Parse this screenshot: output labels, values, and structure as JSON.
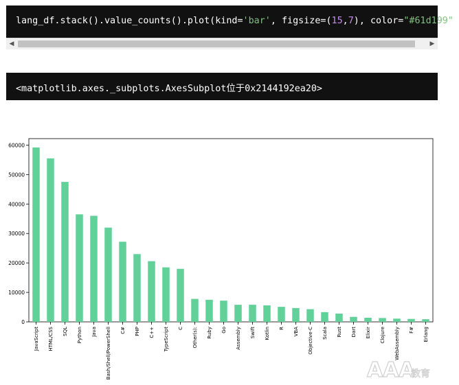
{
  "code_cell": {
    "tokens": [
      {
        "t": "lang_df.stack().value_counts().plot(kind=",
        "c": "plain"
      },
      {
        "t": "'bar'",
        "c": "str"
      },
      {
        "t": ", figsize=(",
        "c": "plain"
      },
      {
        "t": "15",
        "c": "num"
      },
      {
        "t": ",",
        "c": "plain"
      },
      {
        "t": "7",
        "c": "num"
      },
      {
        "t": "), color=",
        "c": "plain"
      },
      {
        "t": "\"#61d199\"",
        "c": "str"
      },
      {
        "t": ")",
        "c": "plain"
      }
    ]
  },
  "output_cell": {
    "text": "<matplotlib.axes._subplots.AxesSubplot位于0x2144192ea20>"
  },
  "chart_data": {
    "type": "bar",
    "color": "#61d199",
    "categories": [
      "JavaScript",
      "HTML/CSS",
      "SQL",
      "Python",
      "Java",
      "Bash/Shell/PowerShell",
      "C#",
      "PHP",
      "C++",
      "TypeScript",
      "C",
      "Other(s):",
      "Ruby",
      "Go",
      "Assembly",
      "Swift",
      "Kotlin",
      "R",
      "VBA",
      "Objective-C",
      "Scala",
      "Rust",
      "Dart",
      "Elixir",
      "Clojure",
      "WebAssembly",
      "F#",
      "Erlang"
    ],
    "values": [
      59200,
      55500,
      47500,
      36500,
      36000,
      32000,
      27200,
      23000,
      20600,
      18500,
      18000,
      7800,
      7500,
      7200,
      5800,
      5800,
      5600,
      5100,
      4700,
      4300,
      3300,
      2800,
      1700,
      1400,
      1300,
      1100,
      1000,
      900
    ],
    "yticks": [
      0,
      10000,
      20000,
      30000,
      40000,
      50000,
      60000
    ],
    "ylim": [
      0,
      62200
    ],
    "title": "",
    "xlabel": "",
    "ylabel": "",
    "grid": false,
    "legend": false
  },
  "watermark": {
    "text": "AAA",
    "subtext": "教育"
  }
}
